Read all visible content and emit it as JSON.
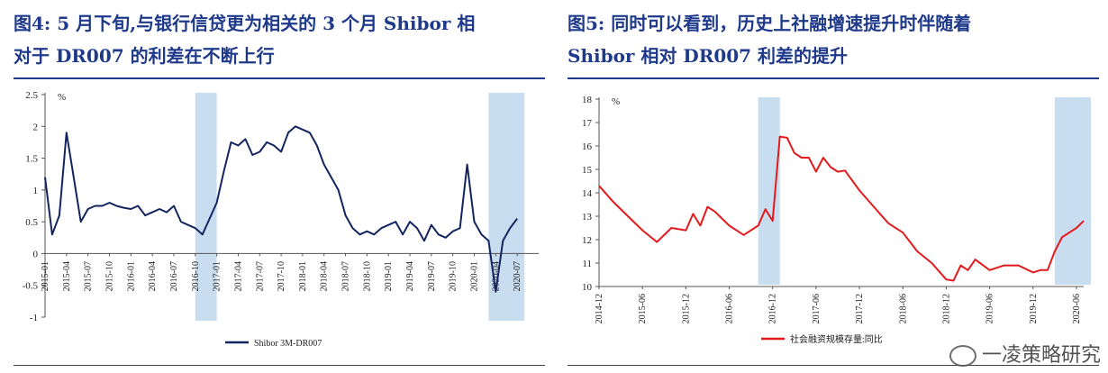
{
  "charts": [
    {
      "title": "图4：5月下旬,与银行信贷更为相关的3个月 Shibor 相对于 DR007 的利差在不断上行",
      "title_line1": "图4:  5 月下旬,与银行信贷更为相关的 3 个月 Shibor 相",
      "title_line2": "对于 DR007 的利差在不断上行",
      "unit": "%",
      "legend": "Shibor 3M-DR007",
      "color": "#13245e",
      "shade_color": "#c9ddf1"
    },
    {
      "title_line1": "图5:  同时可以看到，历史上社融增速提升时伴随着",
      "title_line2": "Shibor 相对 DR007 利差的提升",
      "unit": "%",
      "legend": "社会融资规模存量:同比",
      "color": "#e31a1c",
      "shade_color": "#c9ddf1"
    }
  ],
  "chart_data": [
    {
      "type": "line",
      "title": "图4:  5 月下旬,与银行信贷更为相关的 3 个月 Shibor 相对于 DR007 的利差在不断上行",
      "xlabel": "",
      "ylabel": "%",
      "ylim": [
        -1,
        2.5
      ],
      "yticks": [
        "2.5",
        "2",
        "1.5",
        "1",
        "0.5",
        "0",
        "-0.5",
        "-1"
      ],
      "x_ticks": [
        "2015-01",
        "2015-04",
        "2015-07",
        "2015-10",
        "2016-01",
        "2016-04",
        "2016-07",
        "2016-10",
        "2017-01",
        "2017-04",
        "2017-07",
        "2017-10",
        "2018-01",
        "2018-04",
        "2018-07",
        "2018-10",
        "2019-01",
        "2019-04",
        "2019-07",
        "2019-10",
        "2020-01",
        "2020-04",
        "2020-07"
      ],
      "shaded_periods": [
        [
          "2016-10",
          "2017-01"
        ],
        [
          "2020-03",
          "2020-08"
        ]
      ],
      "series": [
        {
          "name": "Shibor 3M-DR007",
          "x": [
            "2015-01",
            "2015-02",
            "2015-03",
            "2015-04",
            "2015-05",
            "2015-06",
            "2015-07",
            "2015-08",
            "2015-09",
            "2015-10",
            "2015-11",
            "2015-12",
            "2016-01",
            "2016-02",
            "2016-03",
            "2016-04",
            "2016-05",
            "2016-06",
            "2016-07",
            "2016-08",
            "2016-09",
            "2016-10",
            "2016-11",
            "2016-12",
            "2017-01",
            "2017-02",
            "2017-03",
            "2017-04",
            "2017-05",
            "2017-06",
            "2017-07",
            "2017-08",
            "2017-09",
            "2017-10",
            "2017-11",
            "2017-12",
            "2018-01",
            "2018-02",
            "2018-03",
            "2018-04",
            "2018-05",
            "2018-06",
            "2018-07",
            "2018-08",
            "2018-09",
            "2018-10",
            "2018-11",
            "2018-12",
            "2019-01",
            "2019-02",
            "2019-03",
            "2019-04",
            "2019-05",
            "2019-06",
            "2019-07",
            "2019-08",
            "2019-09",
            "2019-10",
            "2019-11",
            "2019-12",
            "2020-01",
            "2020-02",
            "2020-03",
            "2020-04",
            "2020-05",
            "2020-06",
            "2020-07"
          ],
          "values": [
            1.2,
            0.3,
            0.6,
            1.9,
            1.2,
            0.5,
            0.7,
            0.75,
            0.75,
            0.8,
            0.75,
            0.72,
            0.7,
            0.75,
            0.6,
            0.65,
            0.7,
            0.65,
            0.75,
            0.5,
            0.45,
            0.4,
            0.3,
            0.55,
            0.8,
            1.3,
            1.75,
            1.7,
            1.8,
            1.55,
            1.6,
            1.75,
            1.7,
            1.6,
            1.9,
            2.0,
            1.95,
            1.9,
            1.7,
            1.4,
            1.2,
            1.0,
            0.6,
            0.4,
            0.3,
            0.35,
            0.3,
            0.4,
            0.45,
            0.5,
            0.3,
            0.5,
            0.4,
            0.2,
            0.45,
            0.3,
            0.25,
            0.35,
            0.4,
            1.4,
            0.5,
            0.3,
            0.2,
            -0.6,
            0.2,
            0.4,
            0.55
          ]
        }
      ]
    },
    {
      "type": "line",
      "title": "图5:  同时可以看到，历史上社融增速提升时伴随着 Shibor 相对 DR007 利差的提升",
      "xlabel": "",
      "ylabel": "%",
      "ylim": [
        10,
        18
      ],
      "yticks": [
        "18",
        "17",
        "16",
        "15",
        "14",
        "13",
        "12",
        "11",
        "10"
      ],
      "x_ticks": [
        "2014-12",
        "2015-06",
        "2015-12",
        "2016-06",
        "2016-12",
        "2017-06",
        "2017-12",
        "2018-06",
        "2018-12",
        "2019-06",
        "2019-12",
        "2020-06"
      ],
      "shaded_periods": [
        [
          "2016-10",
          "2017-01"
        ],
        [
          "2020-03",
          "2020-08"
        ]
      ],
      "series": [
        {
          "name": "社会融资规模存量:同比",
          "x": [
            "2014-12",
            "2015-02",
            "2015-04",
            "2015-06",
            "2015-08",
            "2015-10",
            "2015-12",
            "2016-01",
            "2016-02",
            "2016-03",
            "2016-04",
            "2016-06",
            "2016-08",
            "2016-10",
            "2016-11",
            "2016-12",
            "2017-01",
            "2017-02",
            "2017-03",
            "2017-04",
            "2017-05",
            "2017-06",
            "2017-07",
            "2017-08",
            "2017-09",
            "2017-10",
            "2017-12",
            "2018-02",
            "2018-04",
            "2018-06",
            "2018-08",
            "2018-10",
            "2018-12",
            "2019-01",
            "2019-02",
            "2019-03",
            "2019-04",
            "2019-06",
            "2019-08",
            "2019-10",
            "2019-12",
            "2020-01",
            "2020-02",
            "2020-03",
            "2020-04",
            "2020-06",
            "2020-07"
          ],
          "values": [
            14.3,
            13.6,
            13.0,
            12.4,
            11.9,
            12.5,
            12.4,
            13.1,
            12.6,
            13.4,
            13.2,
            12.6,
            12.2,
            12.6,
            13.3,
            12.8,
            16.4,
            16.35,
            15.7,
            15.5,
            15.5,
            14.9,
            15.5,
            15.1,
            14.9,
            14.95,
            14.1,
            13.4,
            12.7,
            12.3,
            11.5,
            11.0,
            10.3,
            10.25,
            10.9,
            10.7,
            11.15,
            10.7,
            10.9,
            10.9,
            10.6,
            10.7,
            10.7,
            11.5,
            12.1,
            12.5,
            12.8
          ]
        }
      ]
    }
  ],
  "watermark": "一凌策略研究"
}
